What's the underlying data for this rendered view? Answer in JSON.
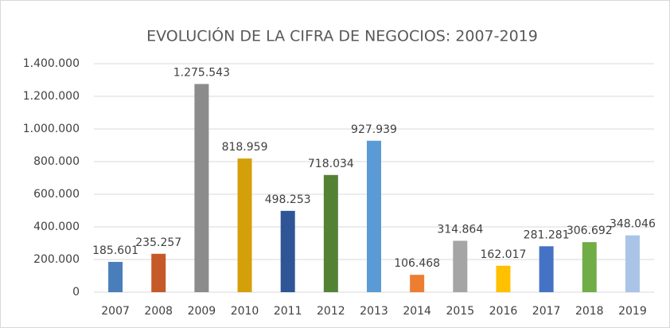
{
  "chart_data": {
    "type": "bar",
    "title": "EVOLUCIÓN DE LA CIFRA DE NEGOCIOS: 2007-2019",
    "categories": [
      "2007",
      "2008",
      "2009",
      "2010",
      "2011",
      "2012",
      "2013",
      "2014",
      "2015",
      "2016",
      "2017",
      "2018",
      "2019"
    ],
    "values": [
      185601,
      235257,
      1275543,
      818959,
      498253,
      718034,
      927939,
      106468,
      314864,
      162017,
      281281,
      306692,
      348046
    ],
    "value_labels": [
      "185.601",
      "235.257",
      "1.275.543",
      "818.959",
      "498.253",
      "718.034",
      "927.939",
      "106.468",
      "314.864",
      "162.017",
      "281.281",
      "306.692",
      "348.046"
    ],
    "colors": [
      "#4a7ebb",
      "#c55a28",
      "#8c8c8c",
      "#d4a00a",
      "#2f5597",
      "#548235",
      "#5b9bd5",
      "#ed7d31",
      "#a5a5a5",
      "#ffc000",
      "#4472c4",
      "#70ad47",
      "#a9c4e6"
    ],
    "ylim": [
      0,
      1400000
    ],
    "yticks": [
      0,
      {
        "value": 200000,
        "label": "200.000"
      },
      {
        "value": 400000,
        "label": "400.000"
      },
      {
        "value": 600000,
        "label": "600.000"
      },
      {
        "value": 800000,
        "label": "800.000"
      },
      {
        "value": 1000000,
        "label": "1.000.000"
      },
      {
        "value": 1200000,
        "label": "1.200.000"
      },
      {
        "value": 1400000,
        "label": "1.400.000"
      }
    ],
    "grid": true
  }
}
